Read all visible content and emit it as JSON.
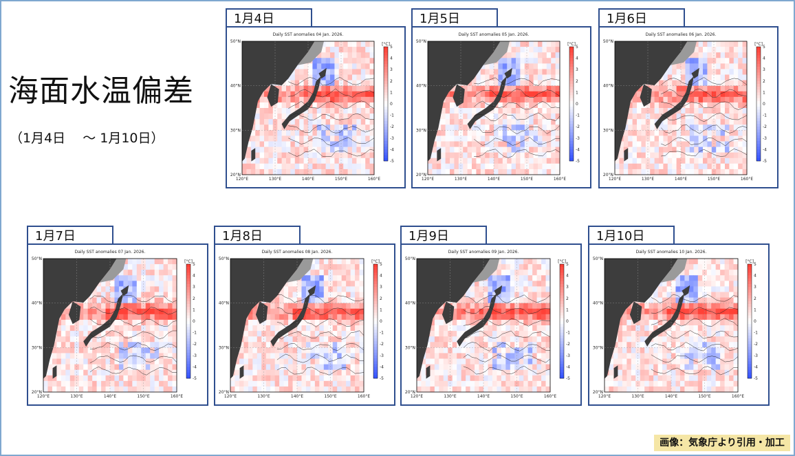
{
  "title": "海面水温偏差",
  "subtitle": "（1月4日　 ～ 1月10日）",
  "credit": "画像：気象庁より引用・加工",
  "map_common": {
    "lat_labels": [
      "50°N",
      "40°N",
      "30°N",
      "20°N"
    ],
    "lon_labels": [
      "120°E",
      "130°E",
      "140°E",
      "150°E",
      "160°E"
    ],
    "colorbar_unit": "[°C]",
    "colorbar_ticks": [
      "5",
      "4",
      "3",
      "2",
      "1",
      "0",
      "-1",
      "-2",
      "-3",
      "-4",
      "-5"
    ]
  },
  "panels": [
    {
      "date": "1月4日",
      "map_title": "Daily SST anomalies 04 Jan. 2026."
    },
    {
      "date": "1月5日",
      "map_title": "Daily SST anomalies 05 Jan. 2026."
    },
    {
      "date": "1月6日",
      "map_title": "Daily SST anomalies 06 Jan. 2026."
    },
    {
      "date": "1月7日",
      "map_title": "Daily SST anomalies 07 Jan. 2026."
    },
    {
      "date": "1月8日",
      "map_title": "Daily SST anomalies 08 Jan. 2026."
    },
    {
      "date": "1月9日",
      "map_title": "Daily SST anomalies 09 Jan. 2026."
    },
    {
      "date": "1月10日",
      "map_title": "Daily SST anomalies 10 Jan. 2026."
    }
  ],
  "colors": {
    "land": "#3d3d3d",
    "warm": "#e84a4a",
    "cold": "#4a5ee8",
    "frame": "#2e4e8e"
  }
}
